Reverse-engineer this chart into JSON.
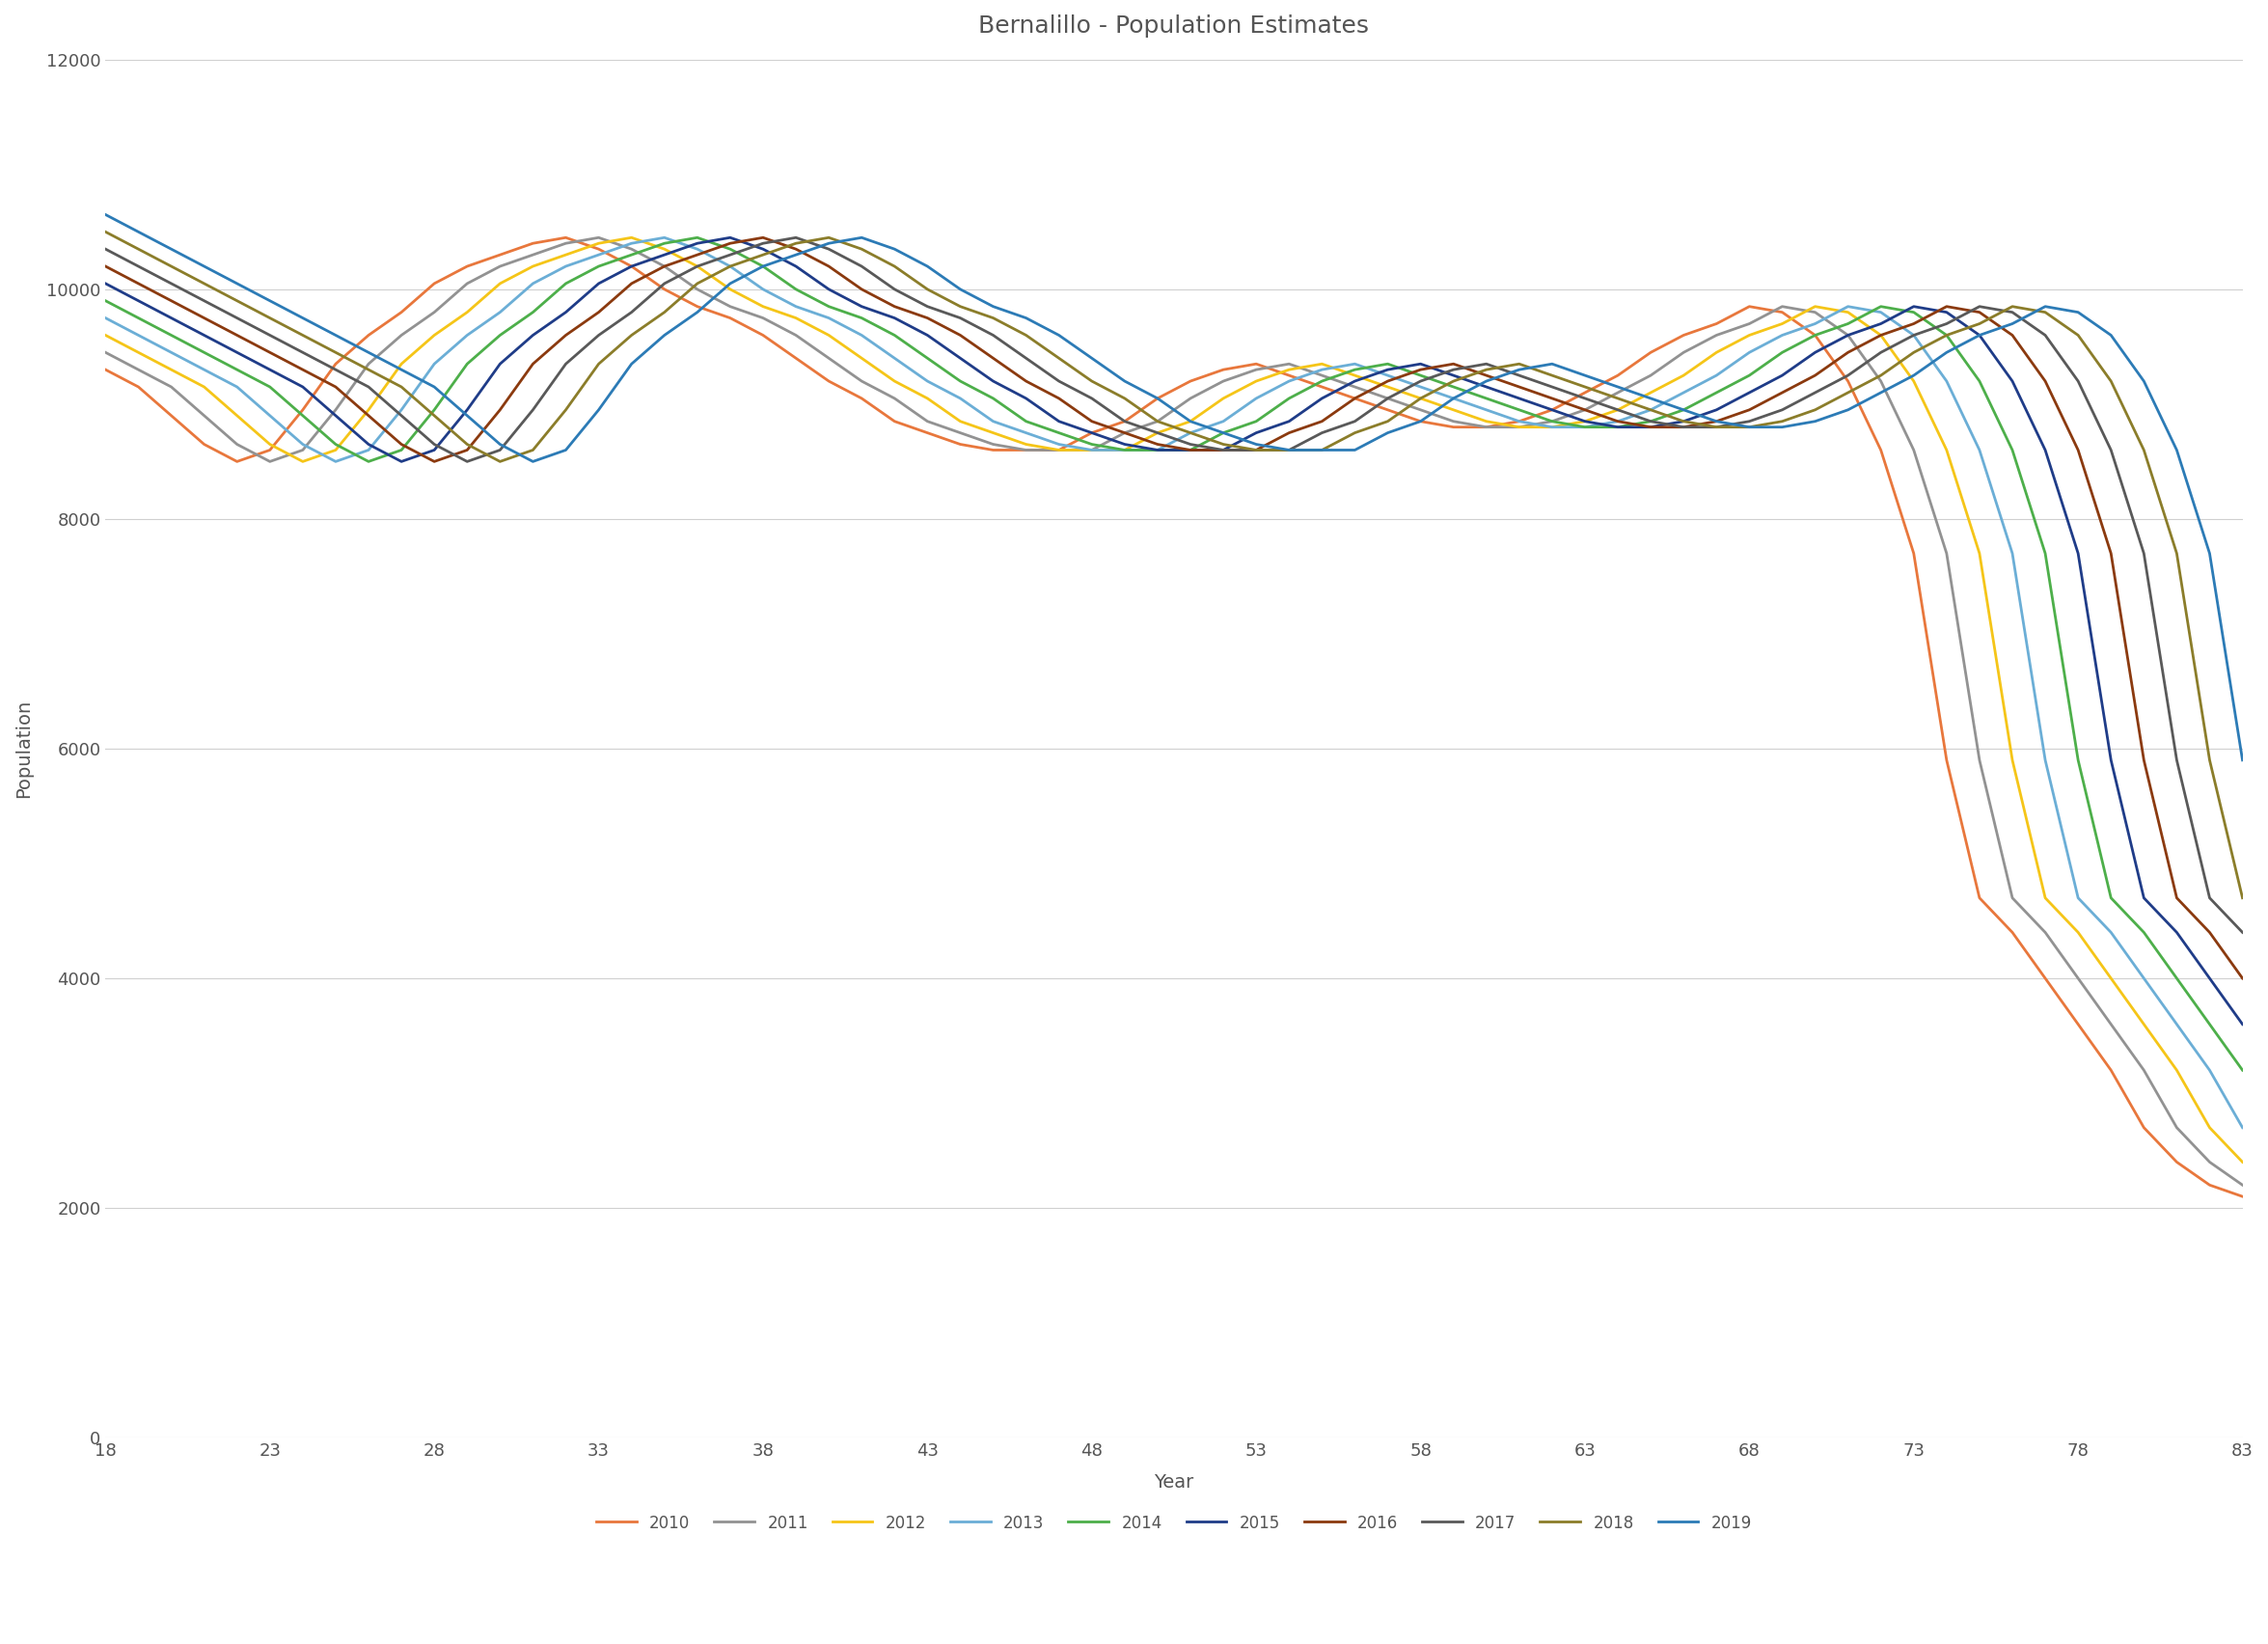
{
  "title": "Bernalillo - Population Estimates",
  "xlabel": "Year",
  "ylabel": "Population",
  "xlim": [
    18,
    83
  ],
  "ylim": [
    0,
    12000
  ],
  "xticks": [
    18,
    23,
    28,
    33,
    38,
    43,
    48,
    53,
    58,
    63,
    68,
    73,
    78,
    83
  ],
  "yticks": [
    0,
    2000,
    4000,
    6000,
    8000,
    10000,
    12000
  ],
  "series_colors": {
    "2010": "#E8773C",
    "2011": "#929292",
    "2012": "#F5C518",
    "2013": "#6BAED6",
    "2014": "#4DAF4A",
    "2015": "#1F3C88",
    "2016": "#8B3A0F",
    "2017": "#595959",
    "2018": "#8B7D2A",
    "2019": "#2C7BB6"
  },
  "background_color": "#ffffff",
  "grid_color": "#d0d0d0",
  "title_fontsize": 18,
  "label_fontsize": 14,
  "tick_fontsize": 13,
  "legend_fontsize": 12,
  "line_width": 2.0,
  "base_ages": [
    18,
    19,
    20,
    21,
    22,
    23,
    24,
    25,
    26,
    27,
    28,
    29,
    30,
    31,
    32,
    33,
    34,
    35,
    36,
    37,
    38,
    39,
    40,
    41,
    42,
    43,
    44,
    45,
    46,
    47,
    48,
    49,
    50,
    51,
    52,
    53,
    54,
    55,
    56,
    57,
    58,
    59,
    60,
    61,
    62,
    63,
    64,
    65,
    66,
    67,
    68,
    69,
    70,
    71,
    72,
    73,
    74,
    75,
    76,
    77,
    78,
    79,
    80,
    81,
    82,
    83
  ],
  "base_pop": [
    9300,
    9150,
    8900,
    8650,
    8500,
    8600,
    8950,
    9350,
    9600,
    9800,
    10050,
    10200,
    10300,
    10400,
    10450,
    10350,
    10200,
    10000,
    9850,
    9750,
    9600,
    9400,
    9200,
    9050,
    8850,
    8750,
    8650,
    8600,
    8600,
    8600,
    8750,
    8850,
    9050,
    9200,
    9300,
    9350,
    9250,
    9150,
    9050,
    8950,
    8850,
    8800,
    8800,
    8850,
    8950,
    9100,
    9250,
    9450,
    9600,
    9700,
    9850,
    9800,
    9600,
    9200,
    8600,
    7700,
    5900,
    4700,
    4400,
    4000,
    3600,
    3200,
    2700,
    2400,
    2200,
    2100
  ]
}
